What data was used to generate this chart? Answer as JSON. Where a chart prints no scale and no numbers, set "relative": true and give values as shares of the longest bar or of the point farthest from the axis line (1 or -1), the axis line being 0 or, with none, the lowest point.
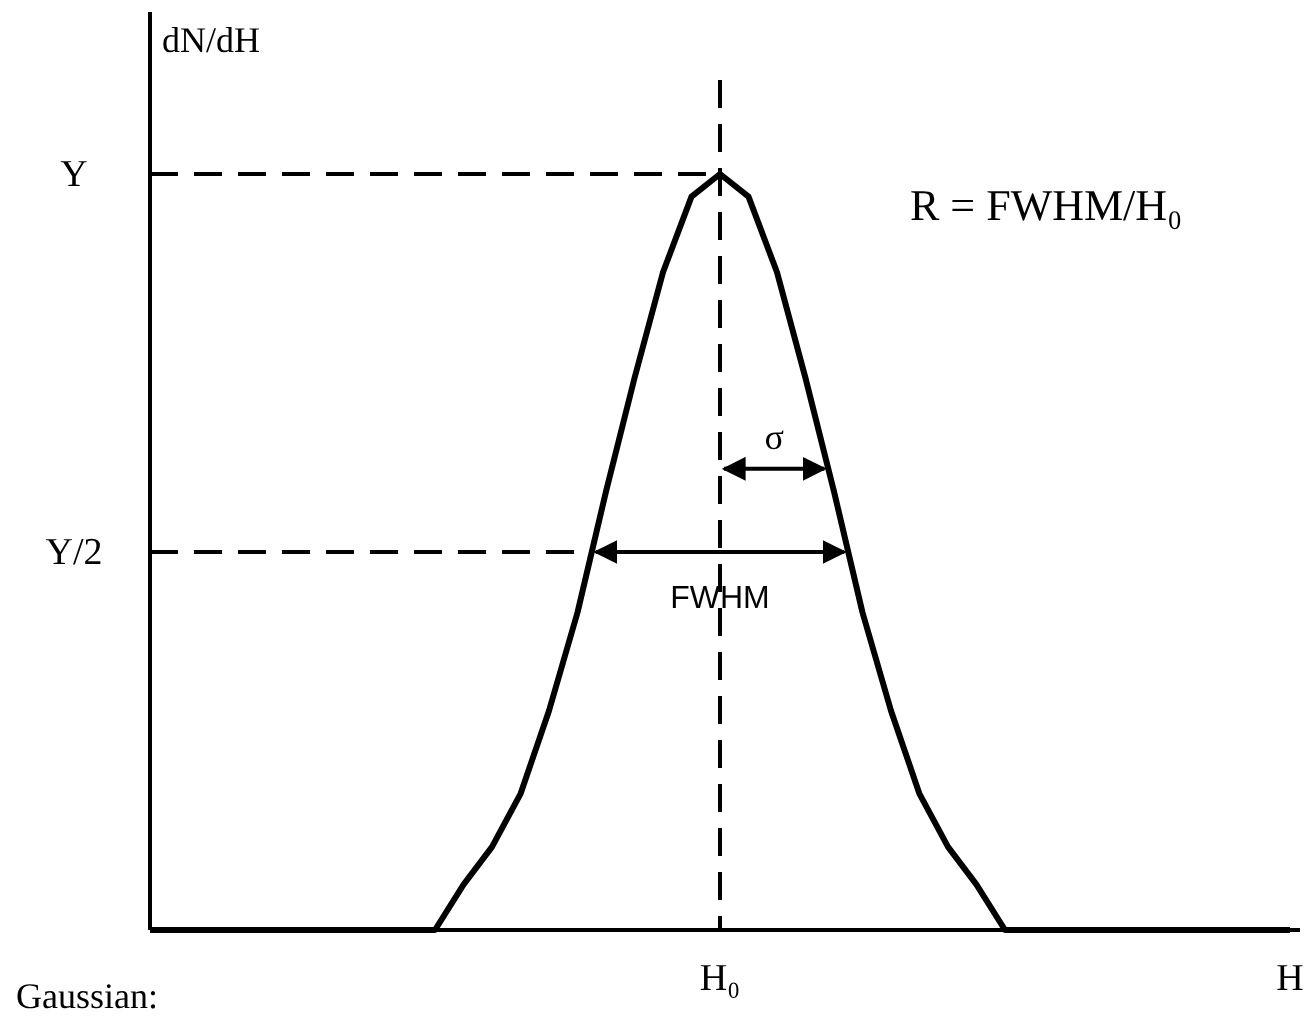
{
  "chart_data": {
    "type": "line",
    "relative": true,
    "ylabel": "dN/dH",
    "categories": [
      null,
      null,
      null,
      null,
      null,
      null,
      null,
      null,
      null,
      null,
      null,
      null,
      null,
      null,
      null,
      null,
      null,
      null,
      null,
      null,
      "H₀",
      null,
      null,
      null,
      null,
      null,
      null,
      null,
      null,
      null,
      null,
      null,
      null,
      null,
      null,
      null,
      null,
      null,
      null,
      null,
      "H"
    ],
    "series": [
      {
        "color": "#000000",
        "values": [
          0,
          0,
          0,
          0,
          0,
          0,
          0,
          0,
          0,
          0,
          0,
          0.06,
          0.11,
          0.18,
          0.29,
          0.42,
          0.58,
          0.73,
          0.87,
          0.97,
          1,
          0.97,
          0.87,
          0.73,
          0.58,
          0.42,
          0.29,
          0.18,
          0.11,
          0.06,
          0,
          0,
          0,
          0,
          0,
          0,
          0,
          0,
          0,
          0,
          0
        ]
      }
    ],
    "tick_labels": "x",
    "ref_lines": [
      {
        "axis": "y",
        "value": 1,
        "label": "Y",
        "line_style": "dashed"
      },
      {
        "axis": "y",
        "value": 0.5,
        "label": "Y/2",
        "line_style": "dashed"
      },
      {
        "axis": "x",
        "value": "H₀",
        "line_style": "dashed"
      }
    ],
    "annotations": [
      {
        "text": "FWHM",
        "x": "H₀",
        "y": 0.5
      },
      "σ",
      "R = FWHM/H₀",
      "Gaussian:"
    ],
    "grid": false,
    "marker": "none",
    "line_style": "solid"
  }
}
